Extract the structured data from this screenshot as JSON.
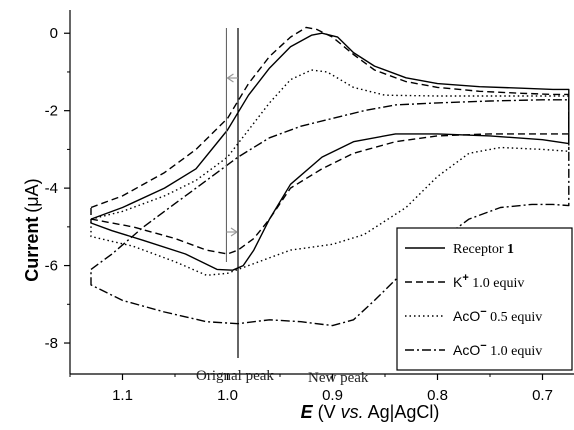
{
  "chart_data": {
    "type": "line",
    "ylabel": {
      "prefix": "Current",
      "unit": "(μA)"
    },
    "xlabel": {
      "var": "E",
      "open": " (V ",
      "vs": "vs.",
      "ref": " Ag|AgCl)"
    },
    "xlim": [
      1.15,
      0.67
    ],
    "ylim": [
      -8.8,
      0.6
    ],
    "x_ticks": [
      1.1,
      1.0,
      0.9,
      0.8,
      0.7
    ],
    "x_tick_labels": [
      "1.1",
      "1.0",
      "0.9",
      "0.8",
      "0.7"
    ],
    "y_ticks": [
      0,
      -2,
      -4,
      -6,
      -8
    ],
    "y_tick_labels": [
      "0",
      "-2",
      "-4",
      "-6",
      "-8"
    ],
    "grid": false,
    "legend_position": "bottom-right",
    "annotations": {
      "original_peak": {
        "text": "Orignal peak",
        "x": 0.99
      },
      "new_peak": {
        "text": "New peak",
        "x": 1.001
      }
    },
    "series": [
      {
        "name": "Receptor 1",
        "legend": {
          "main": "Receptor ",
          "bold": "1",
          "sup": "",
          "suffix": ""
        },
        "style": "solid",
        "forward": [
          [
            1.13,
            -4.8
          ],
          [
            1.1,
            -4.5
          ],
          [
            1.06,
            -4.0
          ],
          [
            1.03,
            -3.5
          ],
          [
            1.0,
            -2.5
          ],
          [
            0.98,
            -1.6
          ],
          [
            0.96,
            -0.9
          ],
          [
            0.94,
            -0.35
          ],
          [
            0.92,
            -0.05
          ],
          [
            0.91,
            0.0
          ],
          [
            0.895,
            -0.1
          ],
          [
            0.88,
            -0.5
          ],
          [
            0.86,
            -0.85
          ],
          [
            0.83,
            -1.15
          ],
          [
            0.8,
            -1.3
          ],
          [
            0.76,
            -1.38
          ],
          [
            0.72,
            -1.42
          ],
          [
            0.69,
            -1.45
          ],
          [
            0.675,
            -1.45
          ]
        ],
        "reverse": [
          [
            0.675,
            -2.85
          ],
          [
            0.7,
            -2.75
          ],
          [
            0.75,
            -2.65
          ],
          [
            0.8,
            -2.6
          ],
          [
            0.84,
            -2.6
          ],
          [
            0.88,
            -2.8
          ],
          [
            0.91,
            -3.2
          ],
          [
            0.94,
            -3.9
          ],
          [
            0.96,
            -4.8
          ],
          [
            0.975,
            -5.6
          ],
          [
            0.985,
            -6.0
          ],
          [
            0.995,
            -6.12
          ],
          [
            1.01,
            -6.1
          ],
          [
            1.04,
            -5.7
          ],
          [
            1.08,
            -5.35
          ],
          [
            1.11,
            -5.1
          ],
          [
            1.13,
            -4.9
          ]
        ]
      },
      {
        "name": "K+ 1.0 equiv",
        "legend": {
          "main": "K",
          "bold": "",
          "sup": "+",
          "suffix": " 1.0 equiv"
        },
        "style": "dashed",
        "forward": [
          [
            1.13,
            -4.5
          ],
          [
            1.1,
            -4.2
          ],
          [
            1.06,
            -3.6
          ],
          [
            1.03,
            -3.0
          ],
          [
            1.0,
            -2.2
          ],
          [
            0.98,
            -1.3
          ],
          [
            0.96,
            -0.6
          ],
          [
            0.94,
            -0.1
          ],
          [
            0.925,
            0.15
          ],
          [
            0.915,
            0.1
          ],
          [
            0.9,
            -0.1
          ],
          [
            0.88,
            -0.55
          ],
          [
            0.86,
            -0.95
          ],
          [
            0.83,
            -1.25
          ],
          [
            0.8,
            -1.4
          ],
          [
            0.76,
            -1.5
          ],
          [
            0.72,
            -1.55
          ],
          [
            0.69,
            -1.58
          ],
          [
            0.675,
            -1.58
          ]
        ],
        "reverse": [
          [
            0.675,
            -2.6
          ],
          [
            0.7,
            -2.6
          ],
          [
            0.75,
            -2.6
          ],
          [
            0.8,
            -2.65
          ],
          [
            0.84,
            -2.8
          ],
          [
            0.88,
            -3.1
          ],
          [
            0.91,
            -3.5
          ],
          [
            0.94,
            -4.0
          ],
          [
            0.96,
            -4.8
          ],
          [
            0.975,
            -5.3
          ],
          [
            0.99,
            -5.6
          ],
          [
            1.0,
            -5.7
          ],
          [
            1.02,
            -5.6
          ],
          [
            1.05,
            -5.3
          ],
          [
            1.09,
            -5.0
          ],
          [
            1.13,
            -4.8
          ]
        ]
      },
      {
        "name": "AcO- 0.5 equiv",
        "legend": {
          "main": "AcO",
          "bold": "",
          "sup": "−",
          "suffix": " 0.5 equiv"
        },
        "style": "dotted",
        "forward": [
          [
            1.13,
            -4.8
          ],
          [
            1.1,
            -4.6
          ],
          [
            1.06,
            -4.2
          ],
          [
            1.03,
            -3.8
          ],
          [
            1.0,
            -3.2
          ],
          [
            0.98,
            -2.5
          ],
          [
            0.96,
            -1.8
          ],
          [
            0.94,
            -1.2
          ],
          [
            0.92,
            -0.95
          ],
          [
            0.905,
            -1.0
          ],
          [
            0.88,
            -1.4
          ],
          [
            0.85,
            -1.6
          ],
          [
            0.8,
            -1.62
          ],
          [
            0.75,
            -1.62
          ],
          [
            0.7,
            -1.62
          ],
          [
            0.675,
            -1.62
          ]
        ],
        "reverse": [
          [
            0.675,
            -3.05
          ],
          [
            0.7,
            -3.0
          ],
          [
            0.74,
            -2.95
          ],
          [
            0.77,
            -3.1
          ],
          [
            0.8,
            -3.7
          ],
          [
            0.83,
            -4.5
          ],
          [
            0.87,
            -5.2
          ],
          [
            0.9,
            -5.45
          ],
          [
            0.94,
            -5.6
          ],
          [
            0.97,
            -5.9
          ],
          [
            1.0,
            -6.2
          ],
          [
            1.02,
            -6.25
          ],
          [
            1.05,
            -5.9
          ],
          [
            1.09,
            -5.5
          ],
          [
            1.13,
            -5.25
          ]
        ]
      },
      {
        "name": "AcO- 1.0 equiv",
        "legend": {
          "main": "AcO",
          "bold": "",
          "sup": "−",
          "suffix": " 1.0 equiv"
        },
        "style": "dashdot",
        "forward": [
          [
            1.13,
            -6.1
          ],
          [
            1.11,
            -5.7
          ],
          [
            1.08,
            -5.0
          ],
          [
            1.05,
            -4.4
          ],
          [
            1.02,
            -3.8
          ],
          [
            0.99,
            -3.2
          ],
          [
            0.96,
            -2.7
          ],
          [
            0.93,
            -2.4
          ],
          [
            0.9,
            -2.2
          ],
          [
            0.87,
            -2.0
          ],
          [
            0.84,
            -1.85
          ],
          [
            0.8,
            -1.8
          ],
          [
            0.75,
            -1.75
          ],
          [
            0.7,
            -1.72
          ],
          [
            0.675,
            -1.72
          ]
        ],
        "reverse": [
          [
            0.675,
            -4.45
          ],
          [
            0.69,
            -4.42
          ],
          [
            0.71,
            -4.42
          ],
          [
            0.74,
            -4.5
          ],
          [
            0.77,
            -4.8
          ],
          [
            0.8,
            -5.4
          ],
          [
            0.83,
            -6.1
          ],
          [
            0.86,
            -6.9
          ],
          [
            0.88,
            -7.4
          ],
          [
            0.9,
            -7.55
          ],
          [
            0.93,
            -7.45
          ],
          [
            0.96,
            -7.4
          ],
          [
            0.99,
            -7.5
          ],
          [
            1.02,
            -7.45
          ],
          [
            1.06,
            -7.2
          ],
          [
            1.1,
            -6.9
          ],
          [
            1.13,
            -6.5
          ]
        ]
      }
    ]
  },
  "colors": {
    "line": "#000000",
    "marker_lines": "#666666",
    "arrow": "#999999"
  }
}
